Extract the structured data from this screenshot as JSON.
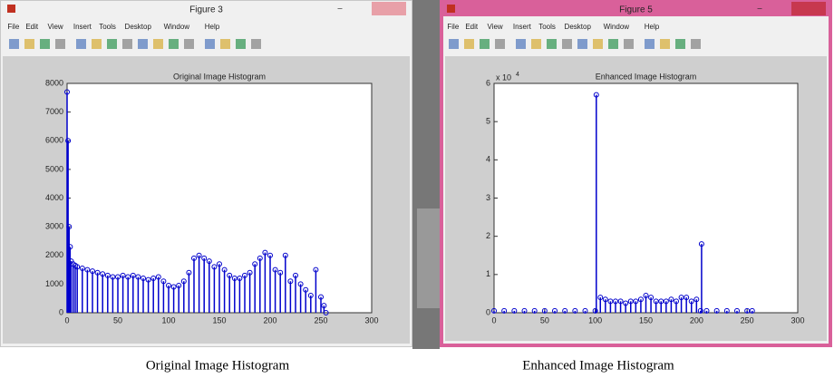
{
  "windows": [
    {
      "title": "Figure 3",
      "menu": [
        "File",
        "Edit",
        "View",
        "Insert",
        "Tools",
        "Desktop",
        "Window",
        "Help"
      ]
    },
    {
      "title": "Figure 5",
      "menu": [
        "File",
        "Edit",
        "View",
        "Insert",
        "Tools",
        "Desktop",
        "Window",
        "Help"
      ]
    }
  ],
  "captions": [
    "Original Image Histogram",
    "Enhanced Image Histogram"
  ],
  "chart_data": [
    {
      "type": "stem",
      "title": "Original Image Histogram",
      "color": "#0000cc",
      "xlim": [
        0,
        300
      ],
      "xticks": [
        0,
        50,
        100,
        150,
        200,
        250,
        300
      ],
      "ylim": [
        0,
        8000
      ],
      "yticks": [
        0,
        1000,
        2000,
        3000,
        4000,
        5000,
        6000,
        7000,
        8000
      ],
      "x": [
        0,
        1,
        2,
        3,
        4,
        6,
        8,
        10,
        15,
        20,
        25,
        30,
        35,
        40,
        45,
        50,
        55,
        60,
        65,
        70,
        75,
        80,
        85,
        90,
        95,
        100,
        105,
        110,
        115,
        120,
        125,
        130,
        135,
        140,
        145,
        150,
        155,
        160,
        165,
        170,
        175,
        180,
        185,
        190,
        195,
        200,
        205,
        210,
        215,
        220,
        225,
        230,
        235,
        240,
        245,
        250,
        253,
        255
      ],
      "values": [
        7700,
        6000,
        3000,
        2300,
        1800,
        1700,
        1650,
        1600,
        1550,
        1500,
        1450,
        1400,
        1350,
        1300,
        1250,
        1250,
        1300,
        1250,
        1300,
        1250,
        1200,
        1150,
        1200,
        1250,
        1100,
        950,
        900,
        950,
        1100,
        1400,
        1900,
        2000,
        1900,
        1800,
        1600,
        1700,
        1500,
        1300,
        1200,
        1200,
        1300,
        1400,
        1700,
        1900,
        2100,
        2000,
        1500,
        1400,
        2000,
        1100,
        1300,
        1000,
        800,
        600,
        1500,
        550,
        250,
        0
      ]
    },
    {
      "type": "stem",
      "title": "Enhanced Image Histogram",
      "color": "#0000cc",
      "y_scale_label": "x 10",
      "y_scale_exponent": "4",
      "xlim": [
        0,
        300
      ],
      "xticks": [
        0,
        50,
        100,
        150,
        200,
        250,
        300
      ],
      "ylim": [
        0,
        6
      ],
      "yticks": [
        0,
        1,
        2,
        3,
        4,
        5,
        6
      ],
      "x": [
        0,
        10,
        20,
        30,
        40,
        50,
        60,
        70,
        80,
        90,
        100,
        101,
        105,
        110,
        115,
        120,
        125,
        130,
        135,
        140,
        145,
        150,
        155,
        160,
        165,
        170,
        175,
        180,
        185,
        190,
        195,
        200,
        204,
        205,
        210,
        220,
        230,
        240,
        250,
        255
      ],
      "values": [
        0.05,
        0.05,
        0.05,
        0.05,
        0.05,
        0.05,
        0.05,
        0.05,
        0.05,
        0.05,
        0.05,
        5.7,
        0.4,
        0.35,
        0.3,
        0.3,
        0.3,
        0.25,
        0.3,
        0.3,
        0.35,
        0.45,
        0.4,
        0.3,
        0.3,
        0.3,
        0.35,
        0.3,
        0.4,
        0.4,
        0.3,
        0.35,
        0.05,
        1.8,
        0.05,
        0.05,
        0.05,
        0.05,
        0.05,
        0.05
      ]
    }
  ]
}
